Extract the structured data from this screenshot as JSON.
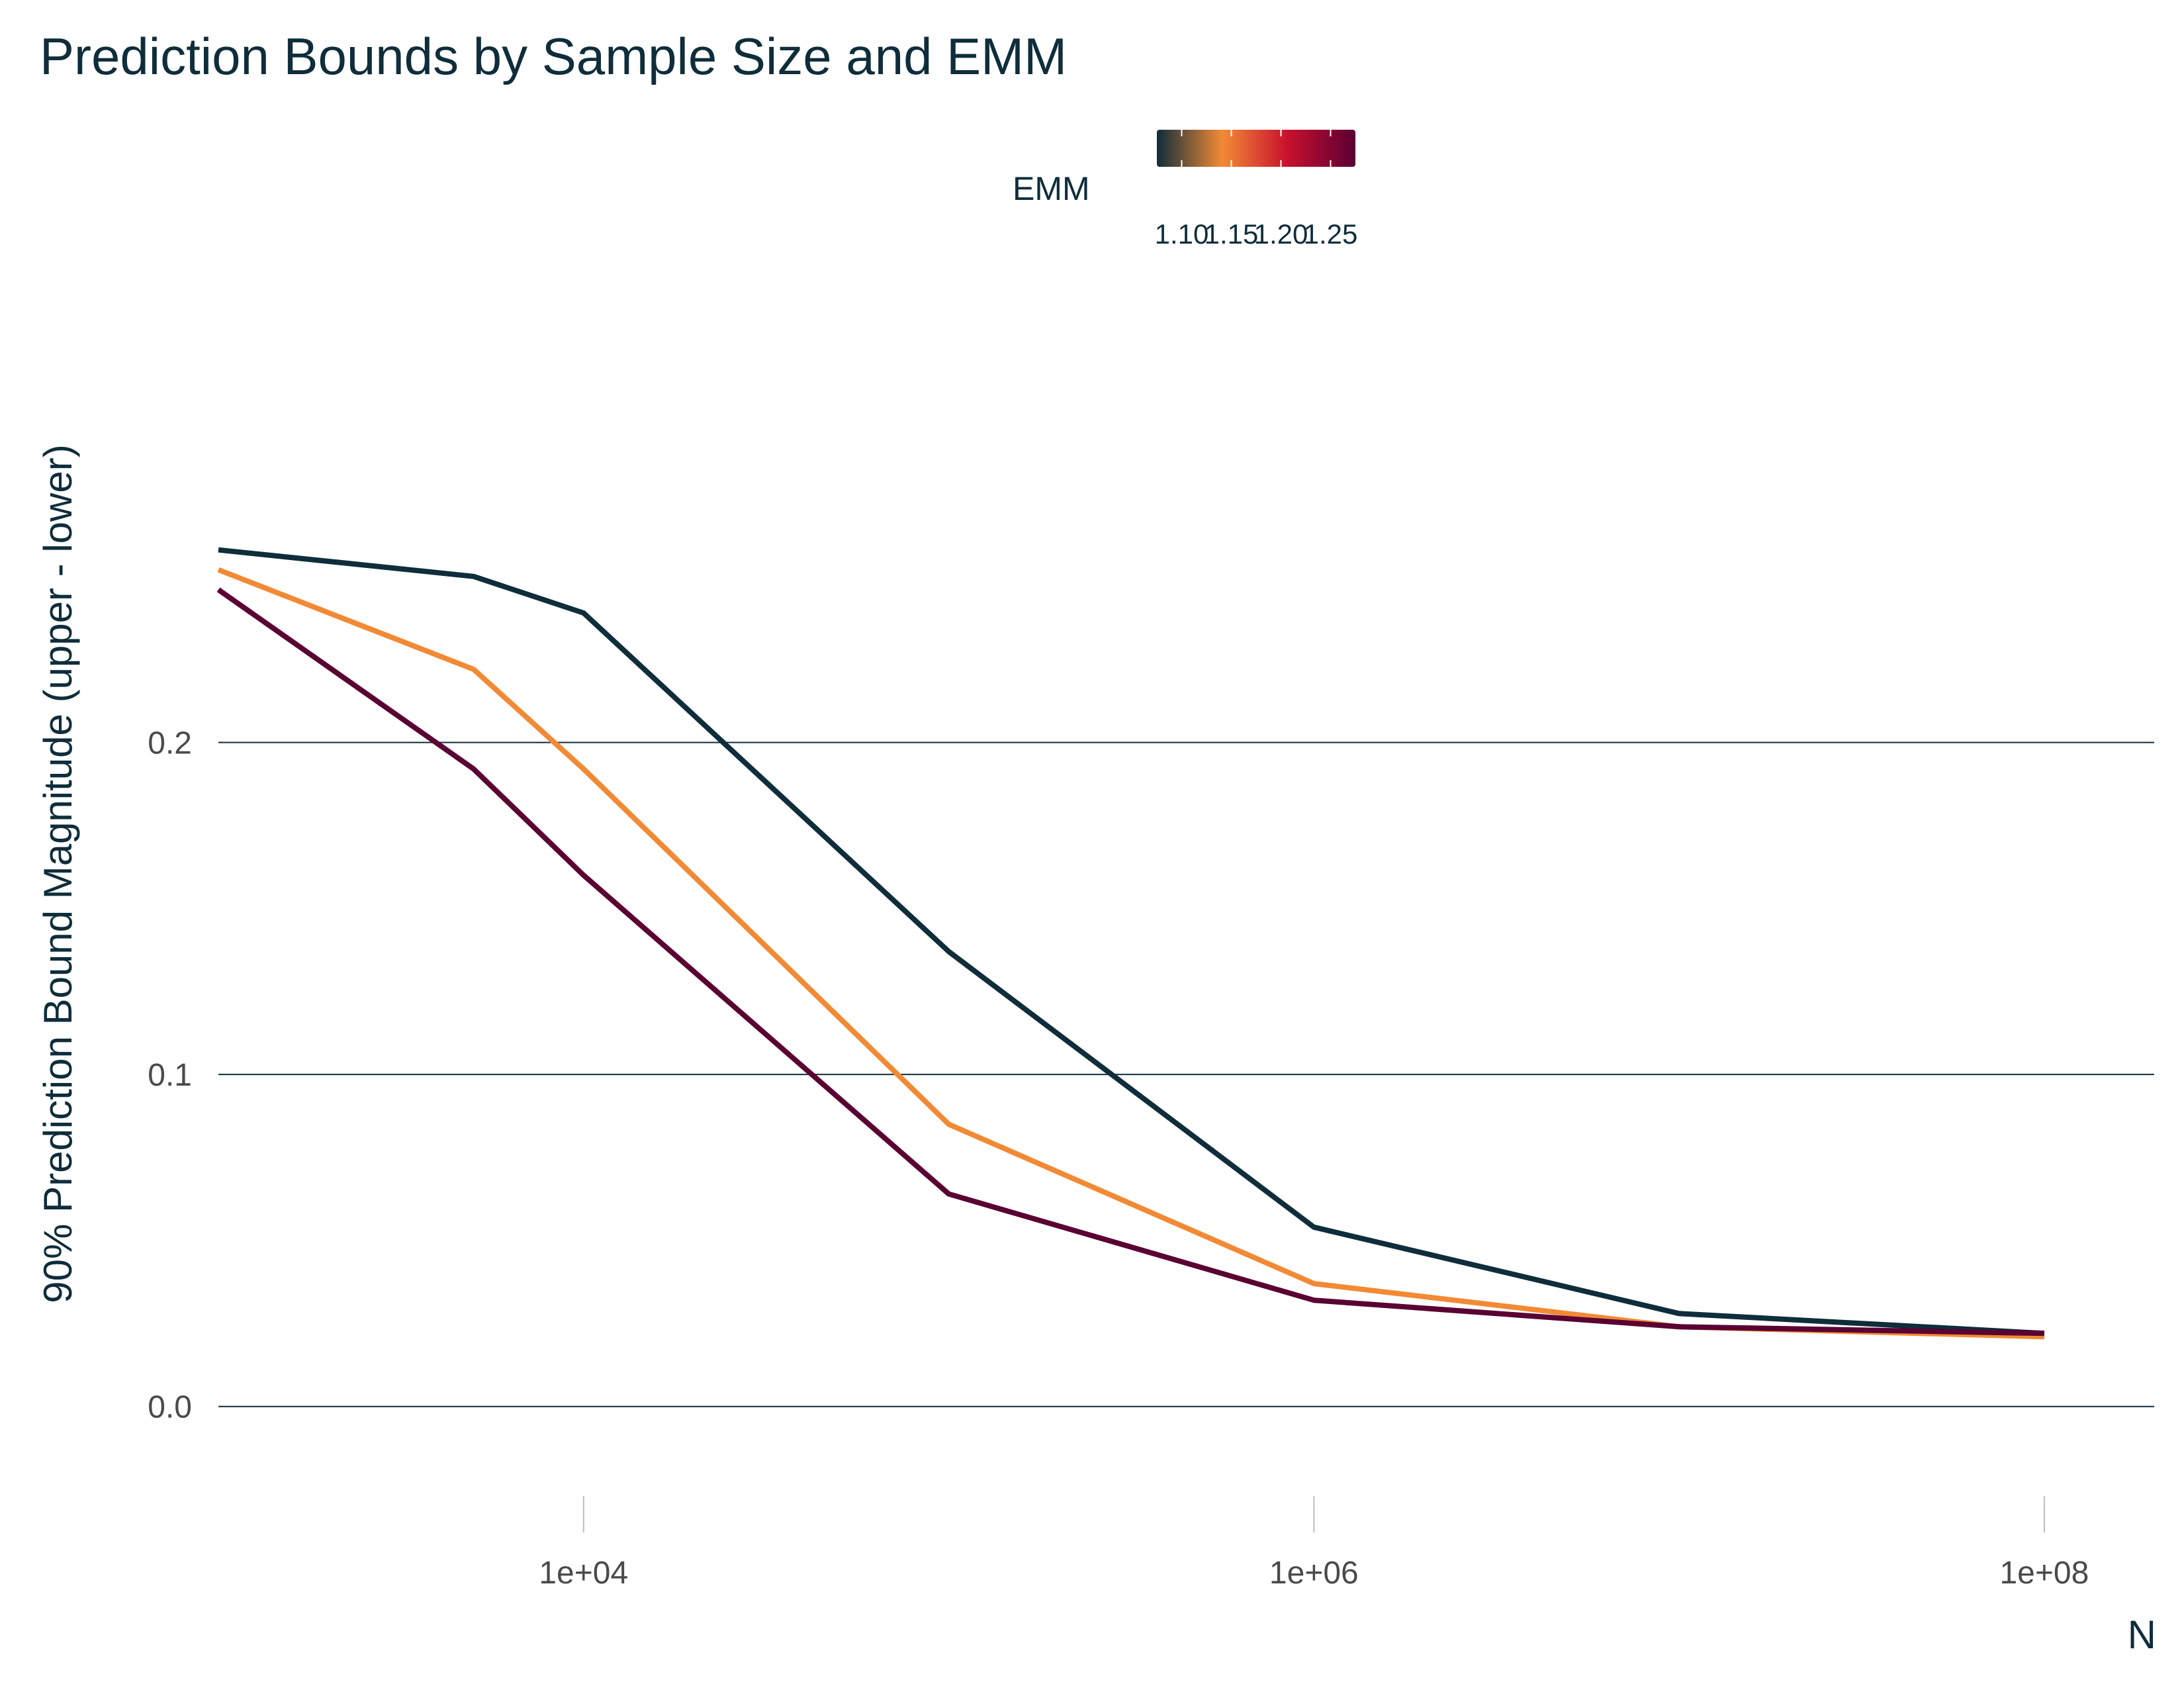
{
  "chart_data": {
    "type": "line",
    "title": "Prediction Bounds by Sample Size and EMM",
    "xlabel": "N",
    "ylabel": "90% Prediction Bound Magnitude (upper - lower)",
    "x_scale": "log10",
    "xlim": [
      1000,
      200000000
    ],
    "ylim": [
      -0.02,
      0.3
    ],
    "xticks": [
      10000,
      1000000,
      100000000
    ],
    "xtick_labels": [
      "1e+04",
      "1e+06",
      "1e+08"
    ],
    "yticks": [
      0.0,
      0.1,
      0.2
    ],
    "ytick_labels": [
      "0.0",
      "0.1",
      "0.2"
    ],
    "grid": "horizontal major",
    "x": [
      1000,
      5000,
      10000,
      100000,
      1000000,
      10000000,
      100000000
    ],
    "series": [
      {
        "emm": 1.1,
        "color": "#0f2d3a",
        "values": [
          0.258,
          0.25,
          0.239,
          0.137,
          0.054,
          0.028,
          0.022
        ]
      },
      {
        "emm": 1.175,
        "color": "#f28a35",
        "values": [
          0.252,
          0.222,
          0.192,
          0.085,
          0.037,
          0.024,
          0.021
        ]
      },
      {
        "emm": 1.25,
        "color": "#5a0032",
        "values": [
          0.246,
          0.192,
          0.16,
          0.064,
          0.032,
          0.024,
          0.022
        ]
      }
    ],
    "legend": {
      "title": "EMM",
      "position": "top",
      "type": "colorbar",
      "colors": [
        "#0f2d3a",
        "#f28a35",
        "#c8102e",
        "#5a0032"
      ],
      "tick_values": [
        1.1,
        1.15,
        1.2,
        1.25
      ],
      "tick_labels": [
        "1.10",
        "1.15",
        "1.20",
        "1.25"
      ]
    }
  }
}
